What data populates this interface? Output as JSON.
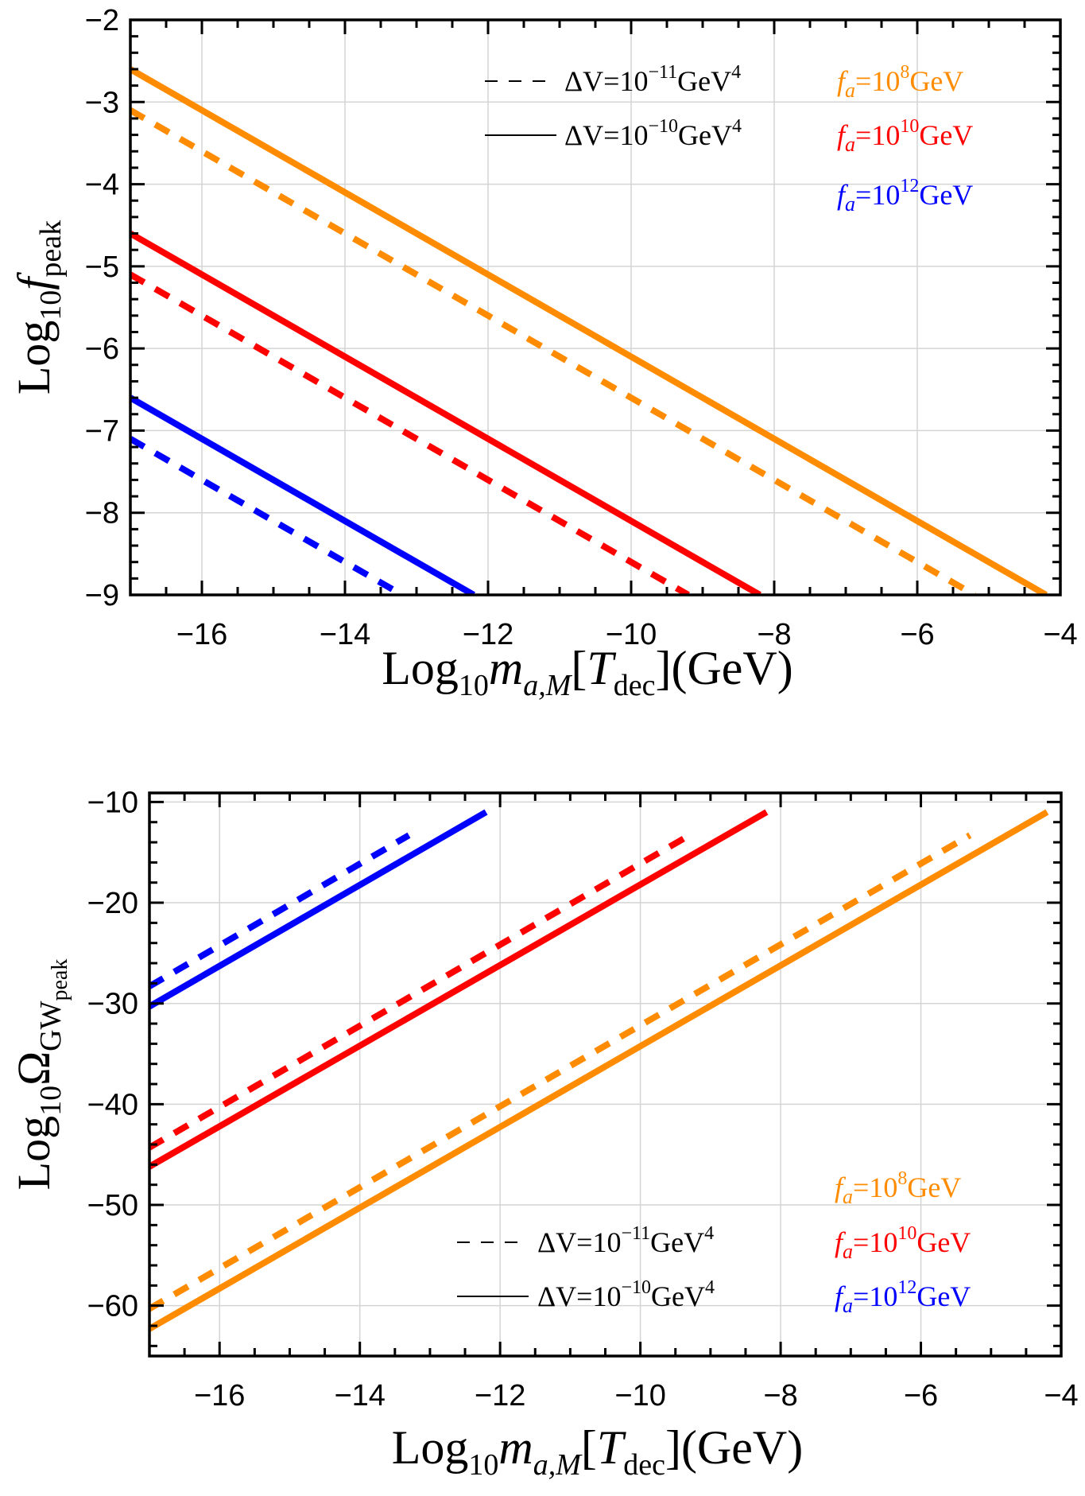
{
  "chart_data": [
    {
      "type": "line",
      "xlabel": {
        "base": "Log",
        "sub1": "10",
        "var": "m",
        "sub2": "a,M",
        "open": "[",
        "T": "T",
        "Tsub": "dec",
        "close": "](GeV)"
      },
      "ylabel": {
        "base": "Log",
        "sub1": "10",
        "var": "f",
        "sub2": "peak"
      },
      "xlim": [
        -17,
        -4
      ],
      "ylim": [
        -9,
        -2
      ],
      "grid": true,
      "xticks": [
        -16,
        -14,
        -12,
        -10,
        -8,
        -6,
        -4
      ],
      "xtick_labels": [
        "−16",
        "−14",
        "−12",
        "−10",
        "−8",
        "−6",
        "−4"
      ],
      "yticks": [
        -9,
        -8,
        -7,
        -6,
        -5,
        -4,
        -3,
        -2
      ],
      "ytick_labels": [
        "−9",
        "−8",
        "−7",
        "−6",
        "−5",
        "−4",
        "−3",
        "−2"
      ],
      "legend_placement": "top",
      "style_legend": [
        {
          "style": "dashed",
          "text": "ΔV=10",
          "sup": "−11",
          "unit": "GeV",
          "unit_sup": "4"
        },
        {
          "style": "solid",
          "text": "ΔV=10",
          "sup": "−10",
          "unit": "GeV",
          "unit_sup": "4"
        }
      ],
      "color_legend": [
        {
          "color": "#ff8c00",
          "pre": "f",
          "sub": "a",
          "text": "=10",
          "sup": "8",
          "unit": "GeV"
        },
        {
          "color": "#ff0000",
          "pre": "f",
          "sub": "a",
          "text": "=10",
          "sup": "10",
          "unit": "GeV"
        },
        {
          "color": "#0000ff",
          "pre": "f",
          "sub": "a",
          "text": "=10",
          "sup": "12",
          "unit": "GeV"
        }
      ],
      "series": [
        {
          "name": "fa=1e8, dV=1e-10",
          "color": "#ff8c00",
          "style": "solid",
          "x": [
            -17,
            -4.2
          ],
          "y": [
            -2.6,
            -9
          ]
        },
        {
          "name": "fa=1e8, dV=1e-11",
          "color": "#ff8c00",
          "style": "dashed",
          "x": [
            -17,
            -5.2
          ],
          "y": [
            -3.1,
            -9
          ]
        },
        {
          "name": "fa=1e10, dV=1e-10",
          "color": "#ff0000",
          "style": "solid",
          "x": [
            -17,
            -8.2
          ],
          "y": [
            -4.6,
            -9
          ]
        },
        {
          "name": "fa=1e10, dV=1e-11",
          "color": "#ff0000",
          "style": "dashed",
          "x": [
            -17,
            -9.2
          ],
          "y": [
            -5.1,
            -9
          ]
        },
        {
          "name": "fa=1e12, dV=1e-10",
          "color": "#0000ff",
          "style": "solid",
          "x": [
            -17,
            -12.2
          ],
          "y": [
            -6.6,
            -9
          ]
        },
        {
          "name": "fa=1e12, dV=1e-11",
          "color": "#0000ff",
          "style": "dashed",
          "x": [
            -17,
            -13.2
          ],
          "y": [
            -7.1,
            -9
          ]
        }
      ]
    },
    {
      "type": "line",
      "xlabel": {
        "base": "Log",
        "sub1": "10",
        "var": "m",
        "sub2": "a,M",
        "open": "[",
        "T": "T",
        "Tsub": "dec",
        "close": "](GeV)"
      },
      "ylabel": {
        "base": "Log",
        "sub1": "10",
        "var": "Ω",
        "sub2": "GW",
        "sub3": "peak"
      },
      "xlim": [
        -17,
        -4
      ],
      "ylim": [
        -65,
        -9.1
      ],
      "grid": true,
      "xticks": [
        -16,
        -14,
        -12,
        -10,
        -8,
        -6,
        -4
      ],
      "xtick_labels": [
        "−16",
        "−14",
        "−12",
        "−10",
        "−8",
        "−6",
        "−4"
      ],
      "yticks": [
        -60,
        -50,
        -40,
        -30,
        -20,
        -10
      ],
      "ytick_labels": [
        "−60",
        "−50",
        "−40",
        "−30",
        "−20",
        "−10"
      ],
      "legend_placement": "bottom-right",
      "style_legend": [
        {
          "style": "dashed",
          "text": "ΔV=10",
          "sup": "−11",
          "unit": "GeV",
          "unit_sup": "4"
        },
        {
          "style": "solid",
          "text": "ΔV=10",
          "sup": "−10",
          "unit": "GeV",
          "unit_sup": "4"
        }
      ],
      "color_legend": [
        {
          "color": "#ff8c00",
          "pre": "f",
          "sub": "a",
          "text": "=10",
          "sup": "8",
          "unit": "GeV"
        },
        {
          "color": "#ff0000",
          "pre": "f",
          "sub": "a",
          "text": "=10",
          "sup": "10",
          "unit": "GeV"
        },
        {
          "color": "#0000ff",
          "pre": "f",
          "sub": "a",
          "text": "=10",
          "sup": "12",
          "unit": "GeV"
        }
      ],
      "series": [
        {
          "name": "fa=1e8, dV=1e-10",
          "color": "#ff8c00",
          "style": "solid",
          "x": [
            -17,
            -4.2
          ],
          "y": [
            -62.3,
            -11
          ]
        },
        {
          "name": "fa=1e8, dV=1e-11",
          "color": "#ff8c00",
          "style": "dashed",
          "x": [
            -17,
            -5.3
          ],
          "y": [
            -60.3,
            -13.3
          ]
        },
        {
          "name": "fa=1e10, dV=1e-10",
          "color": "#ff0000",
          "style": "solid",
          "x": [
            -17,
            -8.2
          ],
          "y": [
            -46.2,
            -11
          ]
        },
        {
          "name": "fa=1e10, dV=1e-11",
          "color": "#ff0000",
          "style": "dashed",
          "x": [
            -17,
            -9.3
          ],
          "y": [
            -44.3,
            -13.3
          ]
        },
        {
          "name": "fa=1e12, dV=1e-10",
          "color": "#0000ff",
          "style": "solid",
          "x": [
            -17,
            -12.2
          ],
          "y": [
            -30.3,
            -11
          ]
        },
        {
          "name": "fa=1e12, dV=1e-11",
          "color": "#0000ff",
          "style": "dashed",
          "x": [
            -17,
            -13.3
          ],
          "y": [
            -28.3,
            -13.3
          ]
        }
      ]
    }
  ]
}
